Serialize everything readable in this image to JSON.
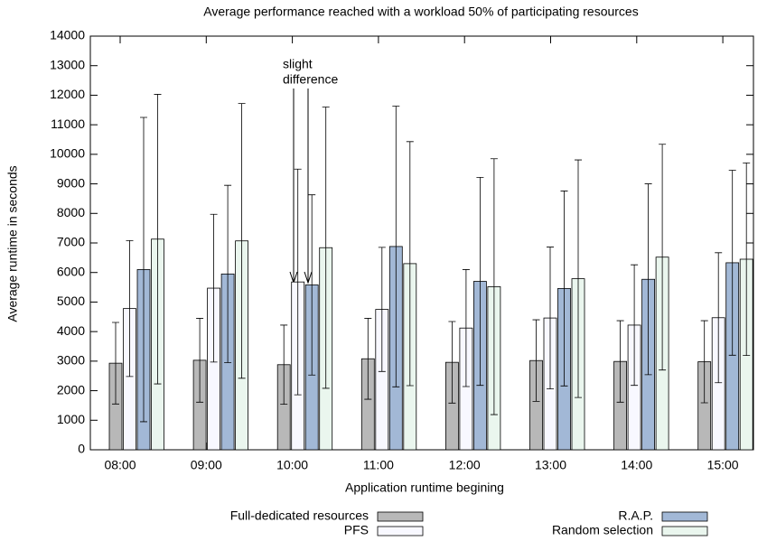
{
  "chart_data": {
    "type": "bar",
    "title": "Average performance reached with a workload 50% of participating resources",
    "x_label": "Application runtime begining",
    "y_label": "Average runtime in seconds",
    "annotation": [
      "slight",
      "difference"
    ],
    "categories": [
      "08:00",
      "09:00",
      "10:00",
      "11:00",
      "12:00",
      "13:00",
      "14:00",
      "15:00"
    ],
    "series": [
      {
        "name": "Full-dedicated resources",
        "color": "#b8b8b8",
        "values": [
          2930,
          3030,
          2880,
          3080,
          2960,
          3020,
          2990,
          2980
        ],
        "errors": [
          1380,
          1420,
          1340,
          1370,
          1380,
          1380,
          1380,
          1390
        ]
      },
      {
        "name": "PFS",
        "color": "#f8f8ff",
        "values": [
          4780,
          5470,
          5680,
          4750,
          4120,
          4460,
          4220,
          4470
        ],
        "errors": [
          2300,
          2500,
          3820,
          2100,
          1980,
          2400,
          2040,
          2200
        ]
      },
      {
        "name": "R.A.P.",
        "color": "#a2b8d6",
        "values": [
          6100,
          5950,
          5580,
          6880,
          5700,
          5460,
          5770,
          6330
        ],
        "errors": [
          5150,
          3000,
          3050,
          4750,
          3520,
          3300,
          3230,
          3130
        ]
      },
      {
        "name": "Random selection",
        "color": "#eaf6ee",
        "values": [
          7130,
          7070,
          6840,
          6300,
          5520,
          5790,
          6520,
          6450
        ],
        "errors": [
          4900,
          4650,
          4760,
          4130,
          4330,
          4020,
          3820,
          3260
        ]
      }
    ],
    "ylim": [
      0,
      14000
    ],
    "yticks": [
      0,
      1000,
      2000,
      3000,
      4000,
      5000,
      6000,
      7000,
      8000,
      9000,
      10000,
      11000,
      12000,
      13000,
      14000
    ]
  }
}
